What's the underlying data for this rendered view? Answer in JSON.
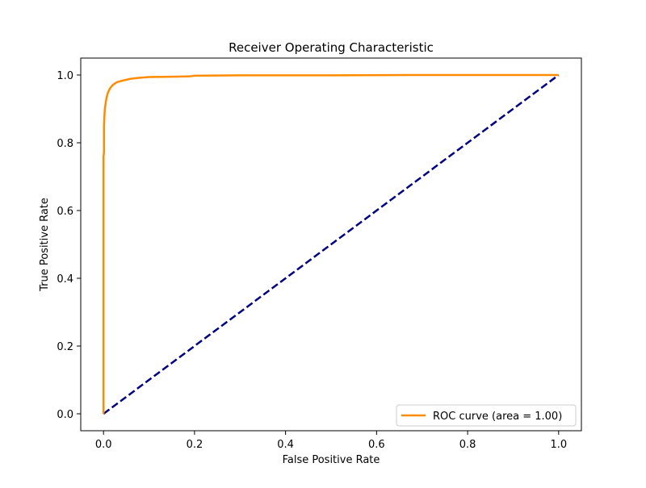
{
  "chart_data": {
    "type": "line",
    "title": "Receiver Operating Characteristic",
    "xlabel": "False Positive Rate",
    "ylabel": "True Positive Rate",
    "xlim": [
      -0.05,
      1.05
    ],
    "ylim": [
      -0.05,
      1.05
    ],
    "xticks": [
      "0.0",
      "0.2",
      "0.4",
      "0.6",
      "0.8",
      "1.0"
    ],
    "yticks": [
      "0.0",
      "0.2",
      "0.4",
      "0.6",
      "0.8",
      "1.0"
    ],
    "grid": false,
    "legend_placement": "lower-right",
    "series": [
      {
        "name": "ROC curve (area = 1.00)",
        "color": "#ff8c00",
        "style": "solid",
        "x": [
          0.0,
          0.0,
          0.001,
          0.001,
          0.002,
          0.003,
          0.004,
          0.005,
          0.007,
          0.009,
          0.012,
          0.015,
          0.02,
          0.025,
          0.03,
          0.04,
          0.05,
          0.06,
          0.08,
          0.1,
          0.15,
          0.19,
          0.2,
          0.3,
          0.5,
          0.7,
          1.0
        ],
        "y": [
          0.0,
          0.76,
          0.77,
          0.85,
          0.88,
          0.9,
          0.91,
          0.92,
          0.935,
          0.945,
          0.955,
          0.962,
          0.97,
          0.975,
          0.979,
          0.983,
          0.986,
          0.989,
          0.992,
          0.994,
          0.995,
          0.996,
          0.998,
          0.999,
          0.999,
          1.0,
          1.0
        ]
      },
      {
        "name": "",
        "color": "#000080",
        "style": "dashed",
        "x": [
          0.0,
          1.0
        ],
        "y": [
          0.0,
          1.0
        ]
      }
    ]
  }
}
